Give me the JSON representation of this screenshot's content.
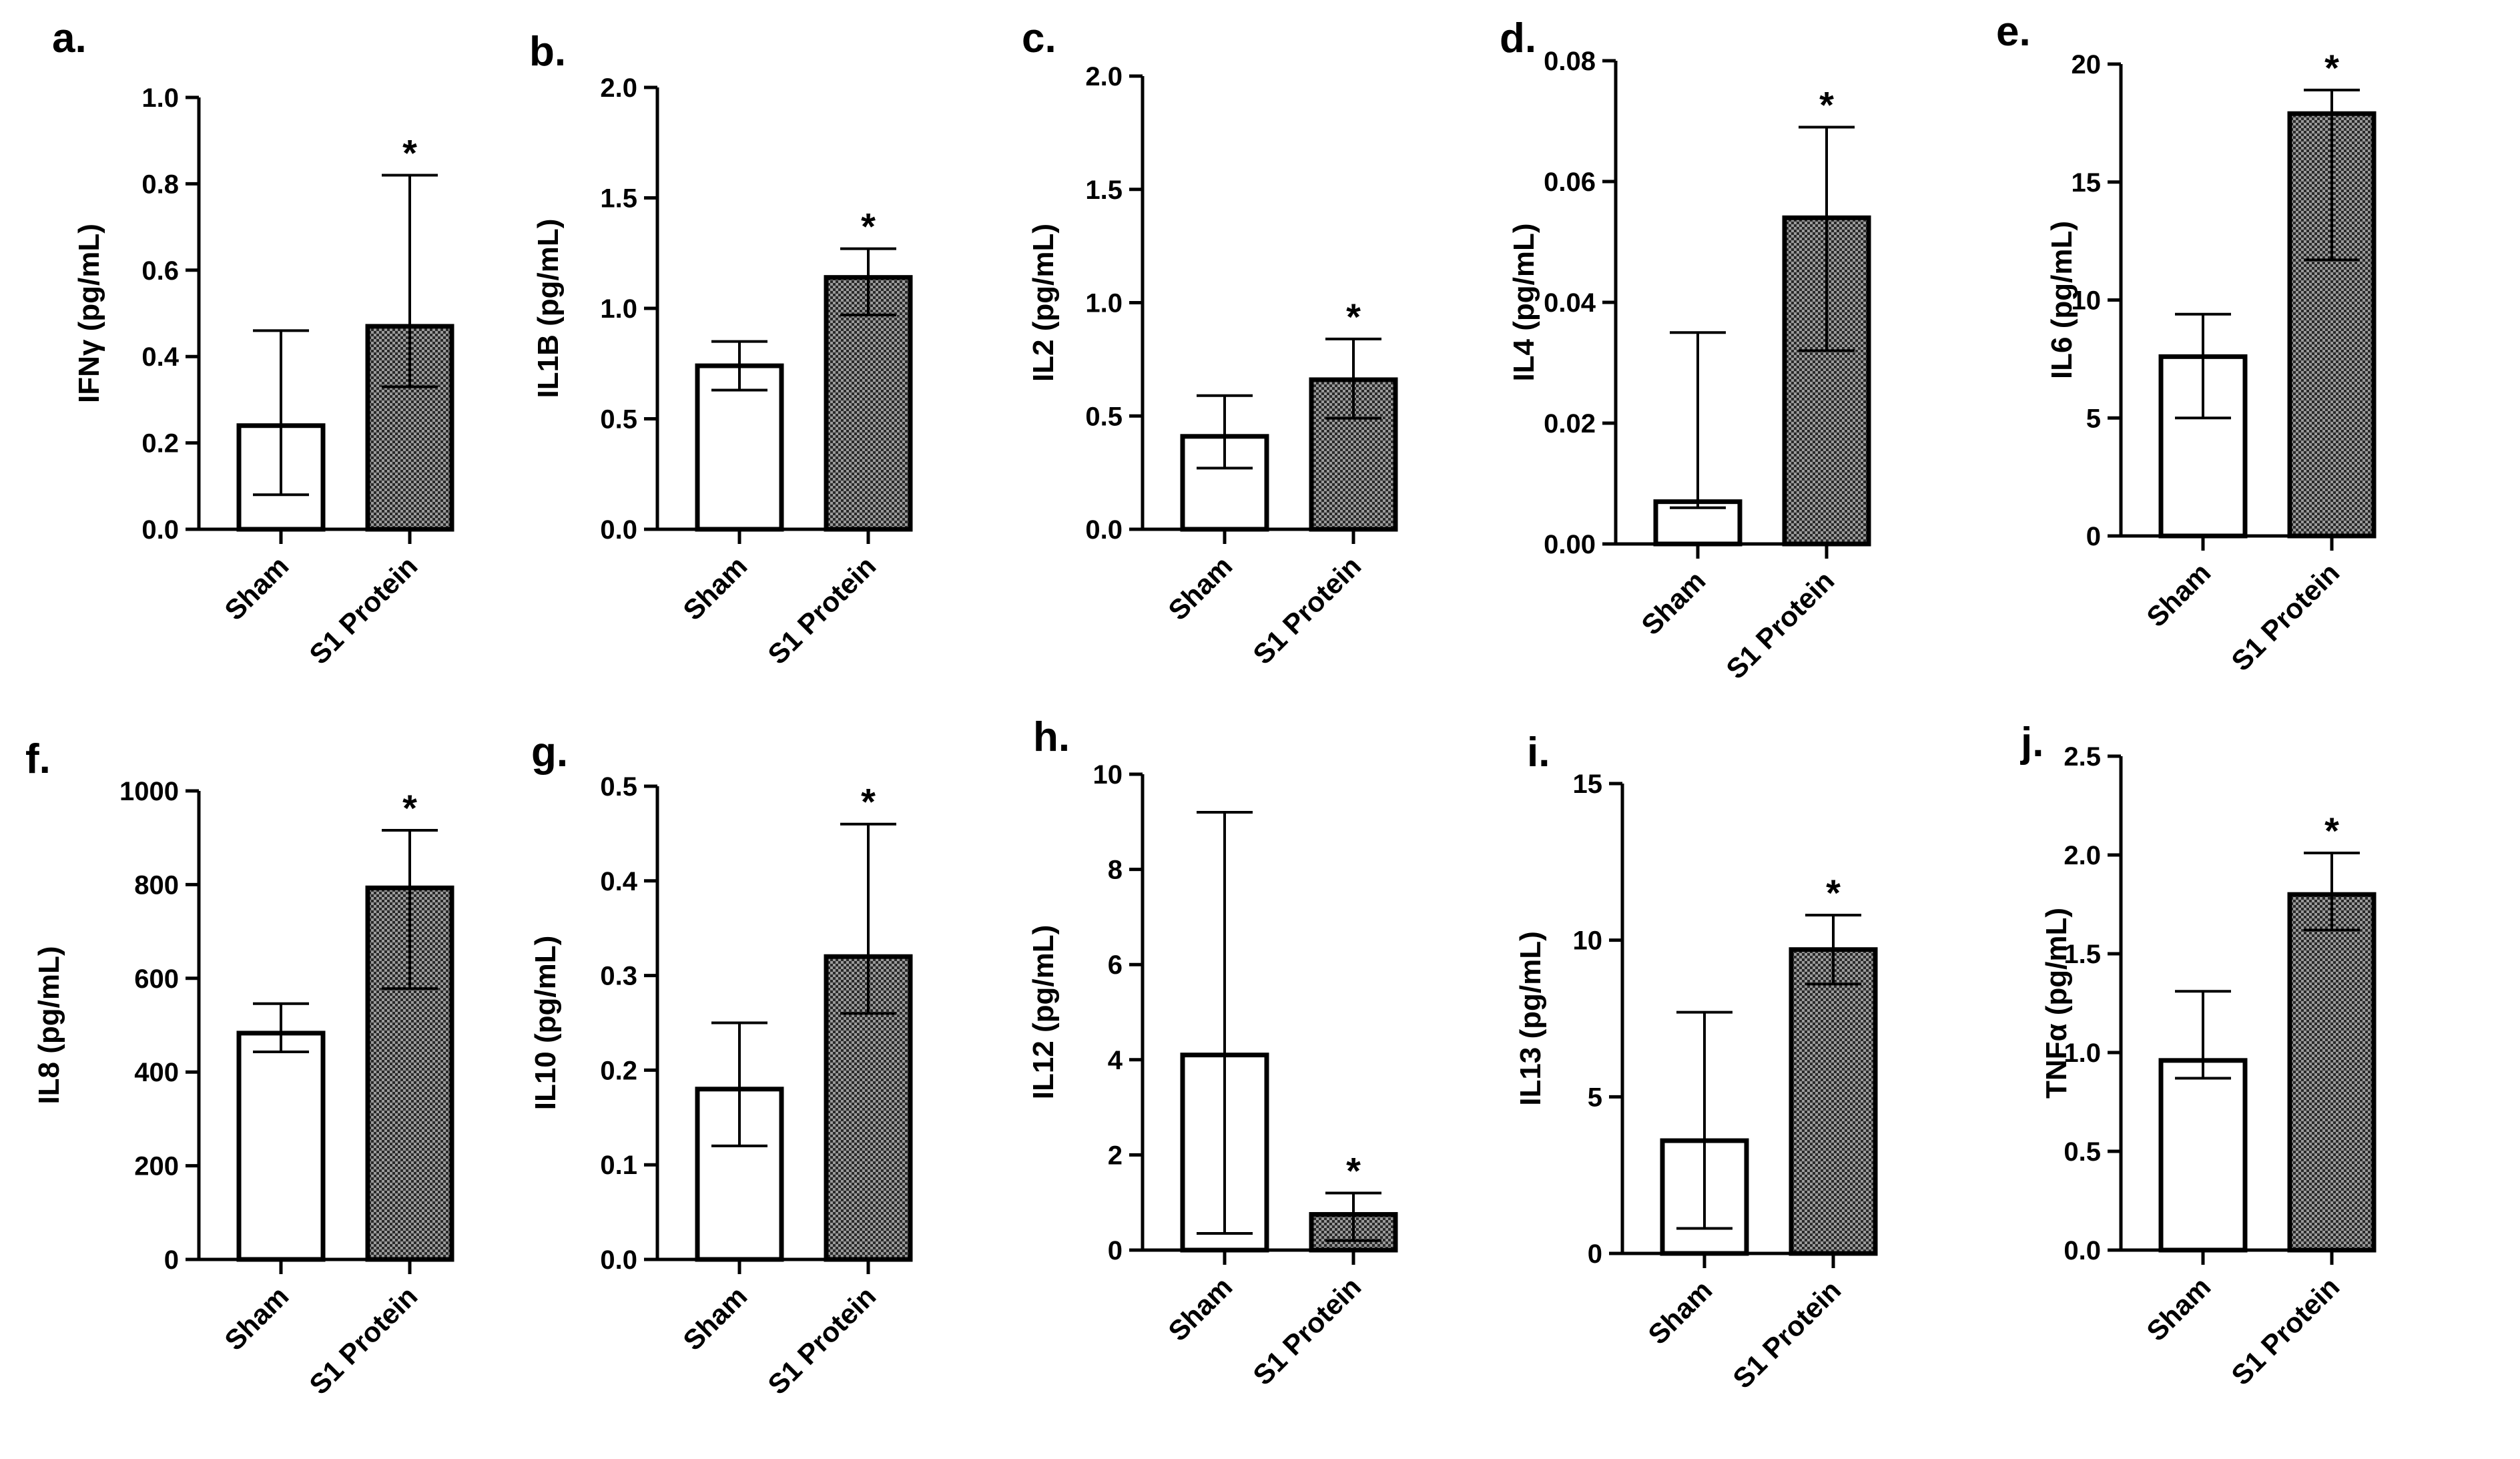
{
  "chart_data": [
    {
      "panel": "a.",
      "type": "bar",
      "ylabel": "IFNγ (pg/mL)",
      "categories": [
        "Sham",
        "S1 Protein"
      ],
      "values": [
        0.24,
        0.47
      ],
      "err_upper": [
        0.46,
        0.82
      ],
      "err_lower": [
        0.08,
        0.33
      ],
      "significance": [
        "",
        "*"
      ],
      "ylim": [
        0,
        1.0
      ],
      "ticks": [
        "0.0",
        "0.2",
        "0.4",
        "0.6",
        "0.8",
        "1.0"
      ]
    },
    {
      "panel": "b.",
      "type": "bar",
      "ylabel": "IL1B (pg/mL)",
      "categories": [
        "Sham",
        "S1 Protein"
      ],
      "values": [
        0.74,
        1.14
      ],
      "err_upper": [
        0.85,
        1.27
      ],
      "err_lower": [
        0.63,
        0.97
      ],
      "significance": [
        "",
        "*"
      ],
      "ylim": [
        0,
        2.0
      ],
      "ticks": [
        "0.0",
        "0.5",
        "1.0",
        "1.5",
        "2.0"
      ]
    },
    {
      "panel": "c.",
      "type": "bar",
      "ylabel": "IL2 (pg/mL)",
      "categories": [
        "Sham",
        "S1 Protein"
      ],
      "values": [
        0.41,
        0.66
      ],
      "err_upper": [
        0.59,
        0.84
      ],
      "err_lower": [
        0.27,
        0.49
      ],
      "significance": [
        "",
        "*"
      ],
      "ylim": [
        0,
        2.0
      ],
      "ticks": [
        "0.0",
        "0.5",
        "1.0",
        "1.5",
        "2.0"
      ]
    },
    {
      "panel": "d.",
      "type": "bar",
      "ylabel": "IL4 (pg/mL)",
      "categories": [
        "Sham",
        "S1 Protein"
      ],
      "values": [
        0.007,
        0.054
      ],
      "err_upper": [
        0.035,
        0.069
      ],
      "err_lower": [
        0.006,
        0.032
      ],
      "significance": [
        "",
        "*"
      ],
      "ylim": [
        0,
        0.08
      ],
      "ticks": [
        "0.00",
        "0.02",
        "0.04",
        "0.06",
        "0.08"
      ]
    },
    {
      "panel": "e.",
      "type": "bar",
      "ylabel": "IL6 (pg/mL)",
      "categories": [
        "Sham",
        "S1 Protein"
      ],
      "values": [
        7.6,
        17.9
      ],
      "err_upper": [
        9.4,
        18.9
      ],
      "err_lower": [
        5.0,
        11.7
      ],
      "significance": [
        "",
        "*"
      ],
      "ylim": [
        0,
        20
      ],
      "ticks": [
        "0",
        "5",
        "10",
        "15",
        "20"
      ]
    },
    {
      "panel": "f.",
      "type": "bar",
      "ylabel": "IL8 (pg/mL)",
      "categories": [
        "Sham",
        "S1 Protein"
      ],
      "values": [
        483,
        793
      ],
      "err_upper": [
        546,
        916
      ],
      "err_lower": [
        443,
        578
      ],
      "significance": [
        "",
        "*"
      ],
      "ylim": [
        0,
        1000
      ],
      "ticks": [
        "0",
        "200",
        "400",
        "600",
        "800",
        "1000"
      ]
    },
    {
      "panel": "g.",
      "type": "bar",
      "ylabel": "IL10 (pg/mL)",
      "categories": [
        "Sham",
        "S1 Protein"
      ],
      "values": [
        0.18,
        0.32
      ],
      "err_upper": [
        0.25,
        0.46
      ],
      "err_lower": [
        0.12,
        0.26
      ],
      "significance": [
        "",
        "*"
      ],
      "ylim": [
        0,
        0.5
      ],
      "ticks": [
        "0.0",
        "0.1",
        "0.2",
        "0.3",
        "0.4",
        "0.5"
      ]
    },
    {
      "panel": "h.",
      "type": "bar",
      "ylabel": "IL12 (pg/mL)",
      "categories": [
        "Sham",
        "S1 Protein"
      ],
      "values": [
        4.1,
        0.75
      ],
      "err_upper": [
        9.2,
        1.2
      ],
      "err_lower": [
        0.35,
        0.2
      ],
      "significance": [
        "",
        "*"
      ],
      "ylim": [
        0,
        10
      ],
      "ticks": [
        "0",
        "2",
        "4",
        "6",
        "8",
        "10"
      ]
    },
    {
      "panel": "i.",
      "type": "bar",
      "ylabel": "IL13 (pg/mL)",
      "categories": [
        "Sham",
        "S1 Protein"
      ],
      "values": [
        3.6,
        9.7
      ],
      "err_upper": [
        7.7,
        10.8
      ],
      "err_lower": [
        0.8,
        8.6
      ],
      "significance": [
        "",
        "*"
      ],
      "ylim": [
        0,
        15
      ],
      "ticks": [
        "0",
        "5",
        "10",
        "15"
      ]
    },
    {
      "panel": "j.",
      "type": "bar",
      "ylabel": "TNFα (pg/mL)",
      "categories": [
        "Sham",
        "S1 Protein"
      ],
      "values": [
        0.96,
        1.8
      ],
      "err_upper": [
        1.31,
        2.01
      ],
      "err_lower": [
        0.87,
        1.62
      ],
      "significance": [
        "",
        "*"
      ],
      "ylim": [
        0,
        2.5
      ],
      "ticks": [
        "0.0",
        "0.5",
        "1.0",
        "1.5",
        "2.0",
        "2.5"
      ]
    }
  ],
  "colors": {
    "axis": "#000000",
    "sham_fill": "#ffffff",
    "s1_fill": "#8c8c8c",
    "pattern_dot": "#2a2a2a"
  }
}
